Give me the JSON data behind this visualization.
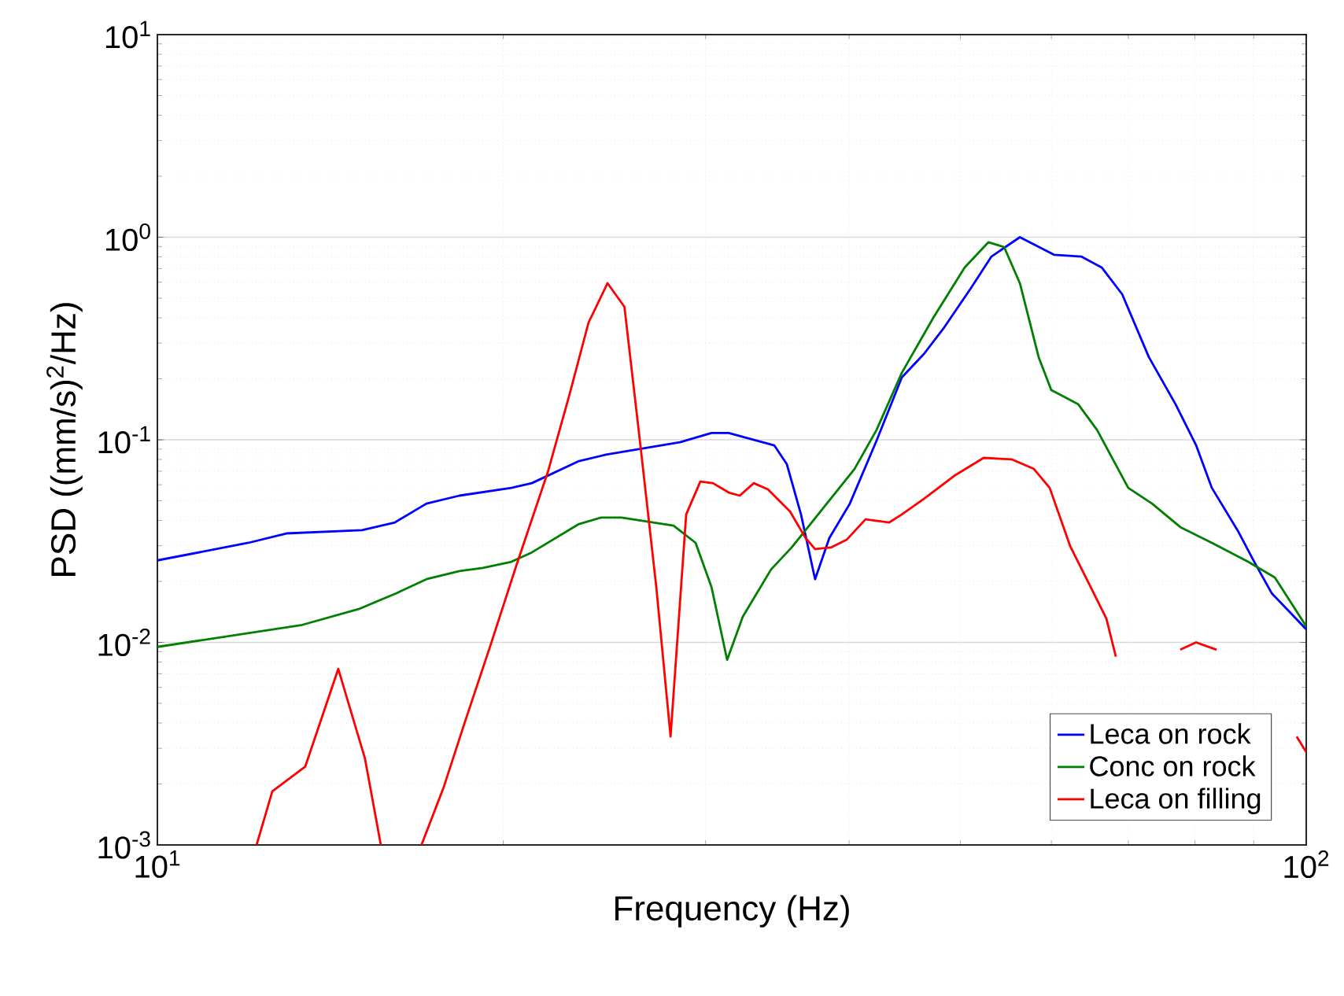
{
  "chart_data": {
    "type": "line",
    "xlabel": "Frequency (Hz)",
    "ylabel": "PSD ((mm/s)$^{2}$/Hz)",
    "log": "xy",
    "grid": true,
    "legend": "bottom right",
    "marker": "none",
    "line_style": "solid",
    "xlim": [
      10,
      100
    ],
    "ylim": [
      0.001,
      10
    ],
    "xticks": [
      {
        "value": 10,
        "label": "10$^{1}$"
      },
      {
        "value": 100,
        "label": "10$^{2}$"
      }
    ],
    "yticks": [
      {
        "value": 0.001,
        "label": "10$^{-3}$"
      },
      {
        "value": 0.01,
        "label": "10$^{-2}$"
      },
      {
        "value": 0.1,
        "label": "10$^{-1}$"
      },
      {
        "value": 1,
        "label": "10$^{0}$"
      },
      {
        "value": 10,
        "label": "10$^{1}$"
      }
    ],
    "series": [
      {
        "name": "Leca on rock",
        "color": "#0000ff",
        "x": [
          10,
          12.0,
          12.95,
          15.07,
          16.1,
          17.15,
          18.32,
          20.33,
          21.18,
          23.28,
          24.57,
          28.5,
          30.36,
          31.43,
          34.43,
          35.31,
          36.33,
          37.37,
          38.45,
          40.06,
          42.27,
          44.46,
          46.47,
          48.41,
          51.08,
          53.21,
          56.33,
          60.36,
          63.7,
          66.37,
          69.15,
          72.95,
          76.96,
          80.2,
          82.76,
          87.3,
          90.1,
          93.3,
          100
        ],
        "values": [
          0.0254,
          0.031,
          0.0345,
          0.0358,
          0.0391,
          0.0484,
          0.053,
          0.0579,
          0.0611,
          0.0785,
          0.0844,
          0.0973,
          0.108,
          0.108,
          0.0939,
          0.0758,
          0.0428,
          0.0205,
          0.0327,
          0.0484,
          0.0991,
          0.203,
          0.265,
          0.359,
          0.562,
          0.803,
          1.0,
          0.818,
          0.803,
          0.709,
          0.523,
          0.256,
          0.15,
          0.0939,
          0.0579,
          0.0351,
          0.025,
          0.0175,
          0.0116
        ]
      },
      {
        "name": "Conc on rock",
        "color": "#008000",
        "x": [
          10,
          13.37,
          14.97,
          16.15,
          17.15,
          18.32,
          19.2,
          20.33,
          21.18,
          23.28,
          24.34,
          25.35,
          28.14,
          29.41,
          30.36,
          31.33,
          32.33,
          34.21,
          35.65,
          38.45,
          40.44,
          42.27,
          44.46,
          47.35,
          50.43,
          52.88,
          54.58,
          56.33,
          58.49,
          59.99,
          63.3,
          65.75,
          70.0,
          73.42,
          77.7,
          82.76,
          89.0,
          93.9,
          100
        ],
        "values": [
          0.0095,
          0.0122,
          0.0146,
          0.0175,
          0.0205,
          0.0225,
          0.0233,
          0.025,
          0.0278,
          0.0384,
          0.0413,
          0.0413,
          0.0377,
          0.031,
          0.0188,
          0.0082,
          0.0134,
          0.0229,
          0.0294,
          0.0502,
          0.0718,
          0.112,
          0.214,
          0.4,
          0.709,
          0.944,
          0.894,
          0.593,
          0.256,
          0.176,
          0.15,
          0.112,
          0.0579,
          0.0484,
          0.0371,
          0.031,
          0.025,
          0.0209,
          0.012
        ]
      },
      {
        "name": "Leca on filling",
        "color": "#ff0000",
        "x": [
          12.2,
          12.59,
          13.45,
          14.37,
          15.16,
          15.65,
          16.3,
          16.98,
          17.76,
          18.5,
          19.5,
          20.52,
          21.87,
          22.86,
          23.73,
          24.65,
          25.5,
          26.33,
          27.18,
          27.97,
          28.86,
          29.69,
          30.45,
          31.43,
          32.13,
          33.05,
          34.0,
          35.53,
          36.67,
          37.37,
          38.57,
          39.81,
          41.34,
          43.36,
          44.46,
          46.47,
          49.49,
          52.38,
          55.45,
          57.94,
          59.8,
          62.3,
          64.9,
          67.0,
          68.28,
          73.0,
          77.7,
          80.2,
          83.55,
          90.0,
          98.1,
          100
        ],
        "values": [
          0.001,
          0.00184,
          0.00244,
          0.0074,
          0.00267,
          0.001,
          null,
          0.001,
          0.00194,
          0.00396,
          0.0097,
          0.0237,
          0.0693,
          0.17,
          0.379,
          0.593,
          0.453,
          0.0939,
          0.0188,
          0.00343,
          0.0428,
          0.0622,
          0.0611,
          0.0549,
          0.053,
          0.0611,
          0.0569,
          0.0443,
          0.0327,
          0.0289,
          0.0294,
          0.0321,
          0.0405,
          0.0391,
          0.0428,
          0.0511,
          0.0669,
          0.0814,
          0.08,
          0.0718,
          0.0579,
          0.0299,
          0.0188,
          0.0131,
          0.0085,
          null,
          0.0092,
          0.01,
          0.0092,
          null,
          0.00343,
          0.00287
        ]
      }
    ]
  }
}
